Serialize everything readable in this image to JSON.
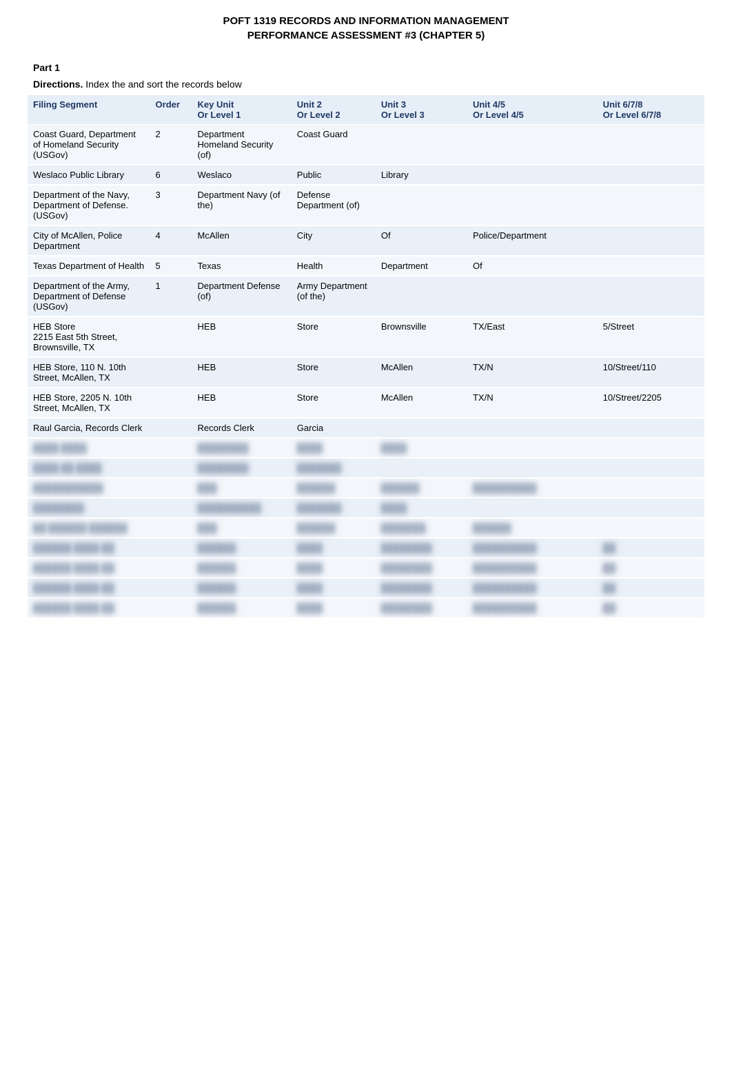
{
  "title_line1": "POFT 1319 RECORDS AND INFORMATION MANAGEMENT",
  "title_line2": "PERFORMANCE ASSESSMENT #3 (CHAPTER 5)",
  "part_label": "Part 1",
  "directions_bold": "Directions.",
  "directions_text": " Index the and sort the records below",
  "headers": {
    "filing": "Filing Segment",
    "order": "Order",
    "key_l1": "Key Unit",
    "key_l2": "Or Level 1",
    "u2_l1": "Unit 2",
    "u2_l2": "Or Level 2",
    "u3_l1": "Unit 3",
    "u3_l2": "Or Level 3",
    "u45_l1": "Unit 4/5",
    "u45_l2": "Or Level 4/5",
    "u678_l1": "Unit 6/7/8",
    "u678_l2": "Or Level 6/7/8"
  },
  "rows": [
    {
      "filing": "Coast Guard, Department of Homeland Security (USGov)",
      "order": "2",
      "key": "Department Homeland Security (of)",
      "u2": "Coast Guard",
      "u3": "",
      "u45": "",
      "u678": ""
    },
    {
      "filing": "Weslaco Public Library",
      "order": "6",
      "key": "Weslaco",
      "u2": "Public",
      "u3": "Library",
      "u45": "",
      "u678": ""
    },
    {
      "filing": "Department of the Navy, Department of Defense. (USGov)",
      "order": "3",
      "key": "Department Navy (of the)",
      "u2": "Defense Department (of)",
      "u3": "",
      "u45": "",
      "u678": ""
    },
    {
      "filing": "City of McAllen, Police Department",
      "order": "4",
      "key": "McAllen",
      "u2": "City",
      "u3": "Of",
      "u45": "Police/Department",
      "u678": ""
    },
    {
      "filing": "Texas Department of Health",
      "order": "5",
      "key": "Texas",
      "u2": "Health",
      "u3": "Department",
      "u45": "Of",
      "u678": ""
    },
    {
      "filing": "Department of the Army, Department of Defense (USGov)",
      "order": "1",
      "key": "Department Defense (of)",
      "u2": "Army Department (of the)",
      "u3": "",
      "u45": "",
      "u678": ""
    },
    {
      "filing": "HEB Store\n2215 East 5th Street, Brownsville, TX",
      "order": "",
      "key": "HEB",
      "u2": "Store",
      "u3": "Brownsville",
      "u45": "TX/East",
      "u678": "5/Street"
    },
    {
      "filing": "HEB Store, 110 N. 10th Street, McAllen, TX",
      "order": "",
      "key": "HEB",
      "u2": "Store",
      "u3": "McAllen",
      "u45": "TX/N",
      "u678": "10/Street/110"
    },
    {
      "filing": "HEB Store, 2205 N. 10th Street, McAllen, TX",
      "order": "",
      "key": "HEB",
      "u2": "Store",
      "u3": "McAllen",
      "u45": "TX/N",
      "u678": "10/Street/2205"
    },
    {
      "filing": "Raul Garcia, Records Clerk",
      "order": "",
      "key": "Records Clerk",
      "u2": "Garcia",
      "u3": "",
      "u45": "",
      "u678": ""
    }
  ],
  "blurred_rows": [
    {
      "filing": "████ ████",
      "key": "████████",
      "u2": "████",
      "u3": "████",
      "u45": "",
      "u678": ""
    },
    {
      "filing": "████ ██ ████",
      "key": "████████",
      "u2": "███████",
      "u3": "",
      "u45": "",
      "u678": ""
    },
    {
      "filing": "███████████",
      "key": "███",
      "u2": "██████",
      "u3": "██████",
      "u45": "██████████",
      "u678": ""
    },
    {
      "filing": "████████",
      "key": "██████████",
      "u2": "███████",
      "u3": "████",
      "u45": "",
      "u678": ""
    },
    {
      "filing": "██ ██████ ██████",
      "key": "███",
      "u2": "██████",
      "u3": "███████",
      "u45": "██████",
      "u678": ""
    },
    {
      "filing": "██████ ████ ██",
      "key": "██████",
      "u2": "████",
      "u3": "████████",
      "u45": "██████████",
      "u678": "██"
    },
    {
      "filing": "██████ ████ ██",
      "key": "██████",
      "u2": "████",
      "u3": "████████",
      "u45": "██████████",
      "u678": "██"
    },
    {
      "filing": "██████ ████ ██",
      "key": "██████",
      "u2": "████",
      "u3": "████████",
      "u45": "██████████",
      "u678": "██"
    },
    {
      "filing": "██████ ████ ██",
      "key": "██████",
      "u2": "████",
      "u3": "████████",
      "u45": "██████████",
      "u678": "██"
    }
  ],
  "style": {
    "page_bg": "#ffffff",
    "text_color": "#000000",
    "header_bg": "#e6eef7",
    "header_text": "#1f3864",
    "row_bg": "#f3f6fb",
    "row_alt_bg": "#eaf0f8",
    "title_fontsize": 15,
    "body_fontsize": 13,
    "col_widths": {
      "filing": 160,
      "order": 55,
      "key": 130,
      "u2": 110,
      "u3": 120,
      "u45": 170,
      "u678": 140
    }
  }
}
